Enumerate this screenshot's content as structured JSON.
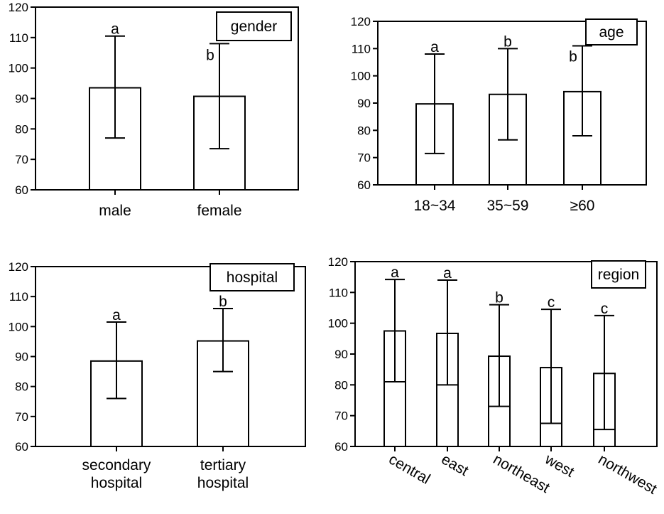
{
  "chart_data": [
    {
      "id": "gender",
      "type": "bar",
      "legend": "gender",
      "categories": [
        "male",
        "female"
      ],
      "values": [
        93.5,
        90.7
      ],
      "error_low": [
        77,
        73.5
      ],
      "error_high": [
        110.5,
        108
      ],
      "letters": [
        "a",
        "b"
      ],
      "yticks": [
        "60",
        "70",
        "80",
        "90",
        "100",
        "110",
        "120"
      ],
      "ylim": [
        60,
        120
      ]
    },
    {
      "id": "age",
      "type": "bar",
      "legend": "age",
      "categories": [
        "18~34",
        "35~59",
        "≥60"
      ],
      "values": [
        89.7,
        93.2,
        94.2
      ],
      "error_low": [
        71.5,
        76.5,
        78
      ],
      "error_high": [
        108,
        110,
        111
      ],
      "letters": [
        "a",
        "b",
        "b"
      ],
      "yticks": [
        "60",
        "70",
        "80",
        "90",
        "100",
        "110",
        "120"
      ],
      "ylim": [
        60,
        120
      ]
    },
    {
      "id": "hospital",
      "type": "bar",
      "legend": "hospital",
      "categories": [
        "secondary hospital",
        "tertiary hospital"
      ],
      "category_lines": [
        [
          "secondary",
          "hospital"
        ],
        [
          "tertiary",
          "hospital"
        ]
      ],
      "values": [
        88.5,
        95.2
      ],
      "error_low": [
        76,
        85
      ],
      "error_high": [
        101.5,
        106
      ],
      "letters": [
        "a",
        "b"
      ],
      "yticks": [
        "60",
        "70",
        "80",
        "90",
        "100",
        "110",
        "120"
      ],
      "ylim": [
        60,
        120
      ]
    },
    {
      "id": "region",
      "type": "bar",
      "legend": "region",
      "categories": [
        "central",
        "east",
        "northeast",
        "west",
        "northwest"
      ],
      "values": [
        97.5,
        96.7,
        89.3,
        85.6,
        83.7
      ],
      "error_low": [
        81,
        80,
        73,
        67.5,
        65.5
      ],
      "error_high": [
        114.2,
        114,
        106,
        104.5,
        102.5
      ],
      "letters": [
        "a",
        "a",
        "b",
        "c",
        "c"
      ],
      "yticks": [
        "60",
        "70",
        "80",
        "90",
        "100",
        "110",
        "120"
      ],
      "ylim": [
        60,
        120
      ]
    }
  ]
}
